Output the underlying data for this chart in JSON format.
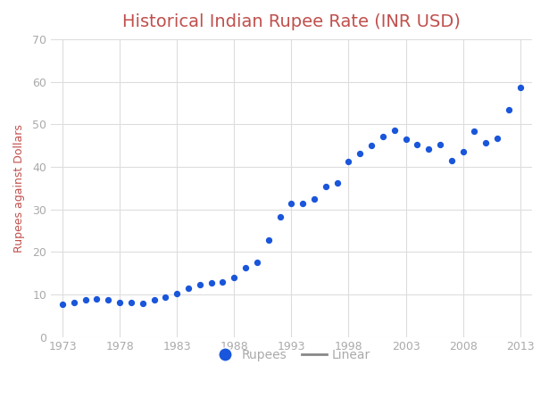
{
  "title": "Historical Indian Rupee Rate (INR USD)",
  "title_color": "#c0504d",
  "xlabel": "",
  "ylabel": "Rupees against Dollars",
  "ylabel_color": "#c0504d",
  "tick_color": "#aaaaaa",
  "background_color": "#ffffff",
  "grid_color": "#dddddd",
  "dot_color": "#1a56db",
  "trendline_color": "#888888",
  "xlim": [
    1972,
    2014
  ],
  "ylim": [
    0,
    70
  ],
  "xticks": [
    1973,
    1978,
    1983,
    1988,
    1993,
    1998,
    2003,
    2008,
    2013
  ],
  "yticks": [
    0,
    10,
    20,
    30,
    40,
    50,
    60,
    70
  ],
  "years": [
    1973,
    1974,
    1975,
    1976,
    1977,
    1978,
    1979,
    1980,
    1981,
    1982,
    1983,
    1984,
    1985,
    1986,
    1987,
    1988,
    1989,
    1990,
    1991,
    1992,
    1993,
    1994,
    1995,
    1996,
    1997,
    1998,
    1999,
    2000,
    2001,
    2002,
    2003,
    2004,
    2005,
    2006,
    2007,
    2008,
    2009,
    2010,
    2011,
    2012,
    2013
  ],
  "rates": [
    7.74,
    8.1,
    8.65,
    8.96,
    8.74,
    8.19,
    8.13,
    7.86,
    8.66,
    9.46,
    10.1,
    11.36,
    12.37,
    12.61,
    12.96,
    13.92,
    16.23,
    17.5,
    22.74,
    28.15,
    31.36,
    31.37,
    32.43,
    35.43,
    36.31,
    41.26,
    43.06,
    44.94,
    47.19,
    48.61,
    46.58,
    45.32,
    44.1,
    45.31,
    41.35,
    43.51,
    48.41,
    45.73,
    46.67,
    53.44,
    58.6
  ],
  "legend_dot_label": "Rupees",
  "legend_line_label": "Linear",
  "legend_dot_color": "#1a56db",
  "legend_line_color": "#888888",
  "dot_size": 18,
  "title_fontsize": 14,
  "axis_fontsize": 9,
  "tick_fontsize": 9,
  "legend_fontsize": 10
}
